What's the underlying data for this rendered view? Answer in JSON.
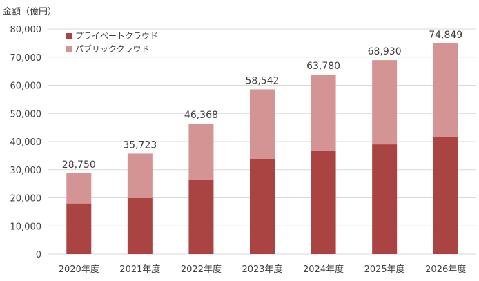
{
  "chart_data": {
    "type": "bar",
    "stacked": true,
    "ylabel": "金額（億円）",
    "categories": [
      "2020年度",
      "2021年度",
      "2022年度",
      "2023年度",
      "2024年度",
      "2025年度",
      "2026年度"
    ],
    "series": [
      {
        "name": "プライベートクラウド",
        "color": "#A94442",
        "values": [
          18000,
          19900,
          26500,
          33800,
          36600,
          39000,
          41500
        ]
      },
      {
        "name": "パブリッククラウド",
        "color": "#D39493",
        "values": [
          10750,
          15823,
          19868,
          24742,
          27180,
          29930,
          33349
        ]
      }
    ],
    "totals": [
      28750,
      35723,
      46368,
      58542,
      63780,
      68930,
      74849
    ],
    "total_labels": [
      "28,750",
      "35,723",
      "46,368",
      "58,542",
      "63,780",
      "68,930",
      "74,849"
    ],
    "ylim": [
      0,
      80000
    ],
    "yticks": [
      0,
      10000,
      20000,
      30000,
      40000,
      50000,
      60000,
      70000,
      80000
    ],
    "ytick_labels": [
      "0",
      "10,000",
      "20,000",
      "30,000",
      "40,000",
      "50,000",
      "60,000",
      "70,000",
      "80,000"
    ],
    "grid": true,
    "legend_position": "top-left"
  }
}
